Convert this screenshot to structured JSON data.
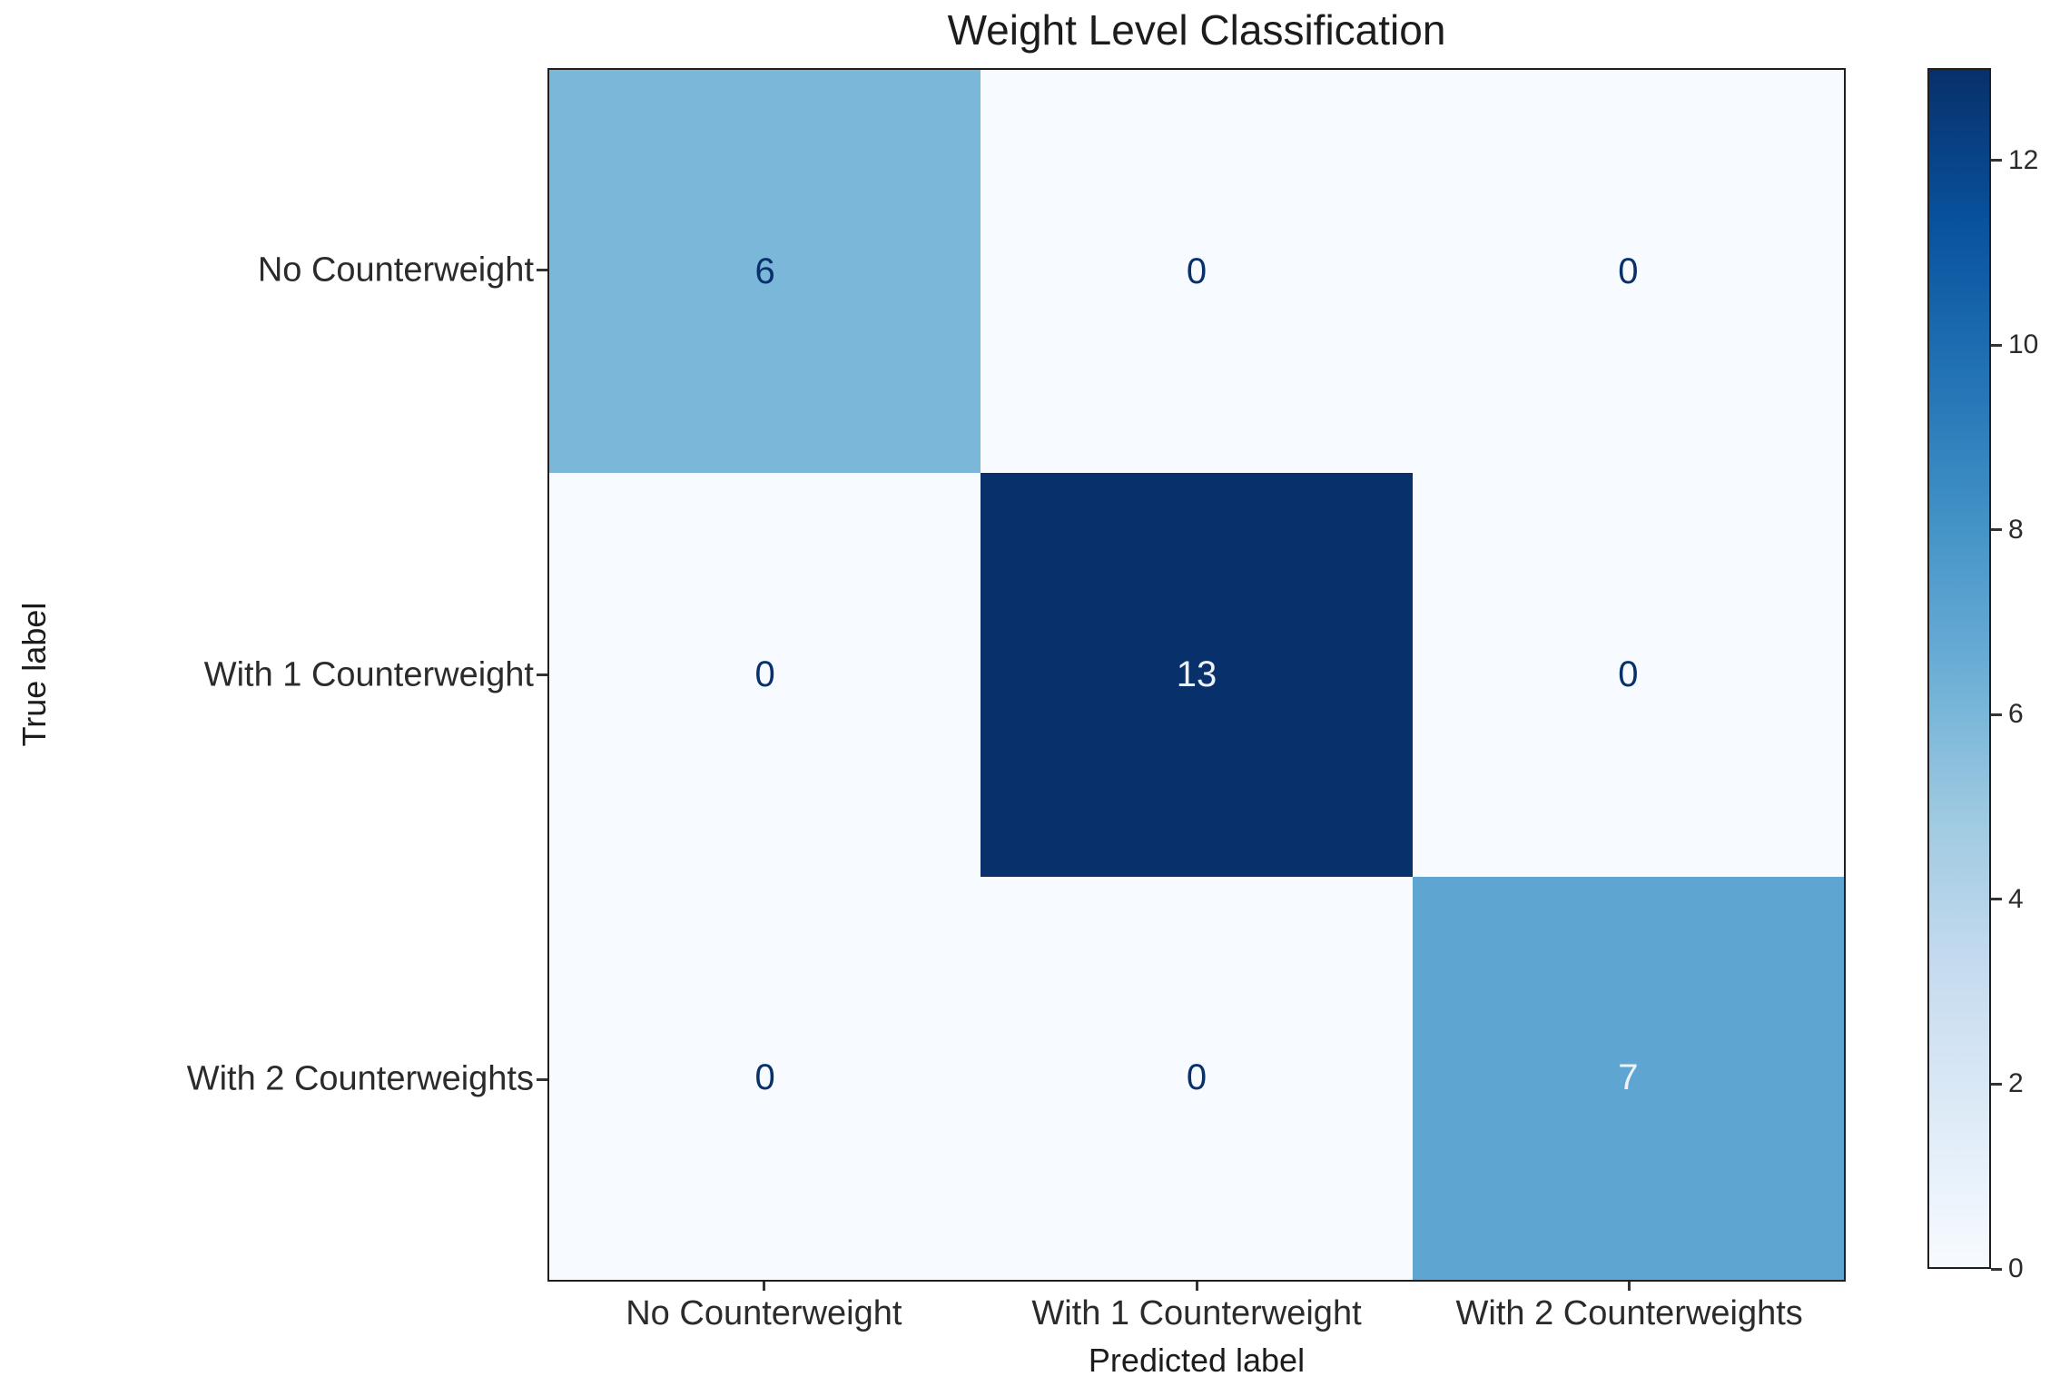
{
  "chart_data": {
    "type": "heatmap",
    "title": "Weight Level Classification",
    "xlabel": "Predicted label",
    "ylabel": "True label",
    "x_categories": [
      "No Counterweight",
      "With 1 Counterweight",
      "With 2 Counterweights"
    ],
    "y_categories": [
      "No Counterweight",
      "With 1 Counterweight",
      "With 2 Counterweights"
    ],
    "matrix": [
      [
        6,
        0,
        0
      ],
      [
        0,
        13,
        0
      ],
      [
        0,
        0,
        7
      ]
    ],
    "vmin": 0,
    "vmax": 13,
    "colormap": "Blues",
    "colormap_stops": [
      "#f7fbff",
      "#deebf7",
      "#c6dbef",
      "#9ecae1",
      "#6baed6",
      "#4292c6",
      "#2171b5",
      "#08519c",
      "#08306b"
    ],
    "colorbar_ticks": [
      0,
      2,
      4,
      6,
      8,
      10,
      12
    ],
    "legend_position": "colorbar-right",
    "grid": false,
    "colors": {
      "annotation_dark": "#08306b",
      "annotation_light": "#eef3fb",
      "axis_text": "#2b2b2b",
      "title_text": "#1c1c1c",
      "frame": "#1f1f1f",
      "background": "#ffffff"
    }
  }
}
